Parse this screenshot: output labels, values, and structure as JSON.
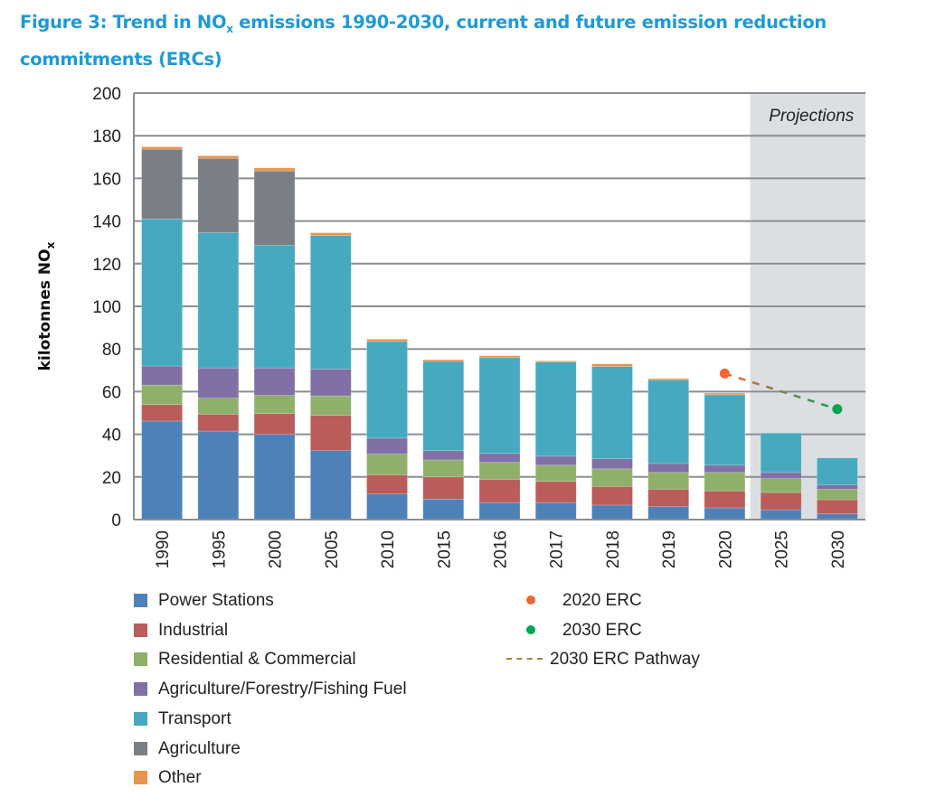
{
  "title": {
    "part1": "Figure 3: Trend in NO",
    "sub": "x",
    "part2": " emissions 1990-2030, current and future emission reduction commitments (ERCs)"
  },
  "chart_data": {
    "type": "bar",
    "stacked": true,
    "ylabel": {
      "main": "kilotonnes NO",
      "sub": "x"
    },
    "ylim": [
      0,
      200
    ],
    "yticks": [
      0,
      20,
      40,
      60,
      80,
      100,
      120,
      140,
      160,
      180,
      200
    ],
    "grid": true,
    "categories": [
      "1990",
      "1995",
      "2000",
      "2005",
      "2010",
      "2015",
      "2016",
      "2017",
      "2018",
      "2019",
      "2020",
      "2025",
      "2030"
    ],
    "projection_label": "Projections",
    "projection_categories": [
      "2025",
      "2030"
    ],
    "series": [
      {
        "name": "Power Stations",
        "color": "#4f81b9",
        "values": [
          46.2,
          41.5,
          40,
          32.4,
          12,
          9.6,
          8,
          8,
          6.8,
          6.1,
          5.5,
          4.6,
          2.7
        ]
      },
      {
        "name": "Industrial",
        "color": "#b95c5a",
        "values": [
          7.7,
          7.9,
          9.7,
          16.5,
          9,
          10.4,
          10.9,
          9.9,
          8.7,
          8.1,
          7.9,
          8.1,
          6.6
        ]
      },
      {
        "name": "Residential & Commercial",
        "color": "#8fb06a",
        "values": [
          9.2,
          7.5,
          8.5,
          9.1,
          9.7,
          8,
          7.9,
          7.6,
          8.3,
          7.9,
          8.7,
          6.5,
          4.9
        ]
      },
      {
        "name": "Agriculture/Forestry/Fishing Fuel",
        "color": "#8070a6",
        "values": [
          8.9,
          14.2,
          12.9,
          12.6,
          7.5,
          4.3,
          4.2,
          4.2,
          4.7,
          4.2,
          3.4,
          2.9,
          2.1
        ]
      },
      {
        "name": "Transport",
        "color": "#46a9bf",
        "values": [
          69,
          63.4,
          57.5,
          62.6,
          45.3,
          41.9,
          44.9,
          44.2,
          43.3,
          39.2,
          33,
          18.5,
          12.6
        ]
      },
      {
        "name": "Agriculture",
        "color": "#7a7f85",
        "values": [
          32.7,
          34.9,
          34.9,
          0,
          0,
          0,
          0,
          0,
          0,
          0,
          0,
          0,
          0
        ]
      },
      {
        "name": "Other",
        "color": "#e8944a",
        "values": [
          1.1,
          1.2,
          1.4,
          1.3,
          1.1,
          0.8,
          0.9,
          0.5,
          1.2,
          0.6,
          0.8,
          0,
          0
        ]
      }
    ],
    "markers": [
      {
        "name": "2020 ERC",
        "color": "#f26631",
        "x": "2020",
        "y": 68.5
      },
      {
        "name": "2030 ERC",
        "color": "#00a650",
        "x": "2030",
        "y": 51.8
      }
    ],
    "pathway": {
      "name": "2030 ERC Pathway",
      "from": [
        "2020",
        68.5
      ],
      "to": [
        "2030",
        51.8
      ]
    },
    "legend_position": "bottom"
  }
}
